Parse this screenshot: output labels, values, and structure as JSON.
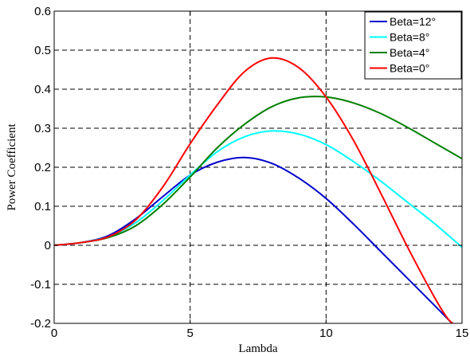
{
  "chart_data": {
    "type": "line",
    "title": "",
    "xlabel": "Lambda",
    "ylabel": "Power Coefficient",
    "xlim": [
      0,
      15
    ],
    "ylim": [
      -0.2,
      0.6
    ],
    "xticks": [
      0,
      5,
      10,
      15
    ],
    "xtick_labels": [
      "0",
      "5",
      "10",
      "15"
    ],
    "yticks": [
      -0.2,
      -0.1,
      0,
      0.1,
      0.2,
      0.3,
      0.4,
      0.5,
      0.6
    ],
    "ytick_labels": [
      "-0.2",
      "-0.1",
      "0",
      "0.1",
      "0.2",
      "0.3",
      "0.4",
      "0.5",
      "0.6"
    ],
    "grid": true,
    "legend_position": "top-right",
    "series": [
      {
        "name": "Beta=12°",
        "color": "#0000cc",
        "x": [
          0,
          1,
          2,
          3,
          4,
          5,
          6,
          7,
          8,
          9,
          10,
          11,
          12,
          13,
          14,
          14.7
        ],
        "y": [
          0,
          0.007,
          0.025,
          0.068,
          0.125,
          0.18,
          0.213,
          0.225,
          0.21,
          0.172,
          0.12,
          0.055,
          -0.015,
          -0.085,
          -0.155,
          -0.205
        ]
      },
      {
        "name": "Beta=8°",
        "color": "#00ffff",
        "x": [
          0,
          1,
          2,
          3,
          4,
          5,
          6,
          7,
          8,
          9,
          10,
          11,
          12,
          13,
          14,
          15
        ],
        "y": [
          0,
          0.007,
          0.022,
          0.058,
          0.115,
          0.18,
          0.24,
          0.278,
          0.293,
          0.285,
          0.258,
          0.215,
          0.165,
          0.11,
          0.055,
          -0.005
        ]
      },
      {
        "name": "Beta=4°",
        "color": "#008000",
        "x": [
          0,
          1,
          2,
          3,
          4,
          5,
          6,
          7,
          8,
          9,
          10,
          11,
          12,
          13,
          14,
          15
        ],
        "y": [
          0,
          0.007,
          0.02,
          0.05,
          0.105,
          0.175,
          0.25,
          0.31,
          0.355,
          0.378,
          0.38,
          0.365,
          0.338,
          0.302,
          0.262,
          0.222
        ]
      },
      {
        "name": "Beta=0°",
        "color": "#ff0000",
        "x": [
          0,
          1,
          2,
          3,
          4,
          5,
          6,
          7,
          8,
          9,
          10,
          11,
          12,
          13,
          14,
          14.5,
          14.8
        ],
        "y": [
          0,
          0.007,
          0.022,
          0.065,
          0.15,
          0.26,
          0.36,
          0.445,
          0.48,
          0.455,
          0.38,
          0.27,
          0.135,
          -0.005,
          -0.135,
          -0.19,
          -0.205
        ]
      }
    ]
  }
}
